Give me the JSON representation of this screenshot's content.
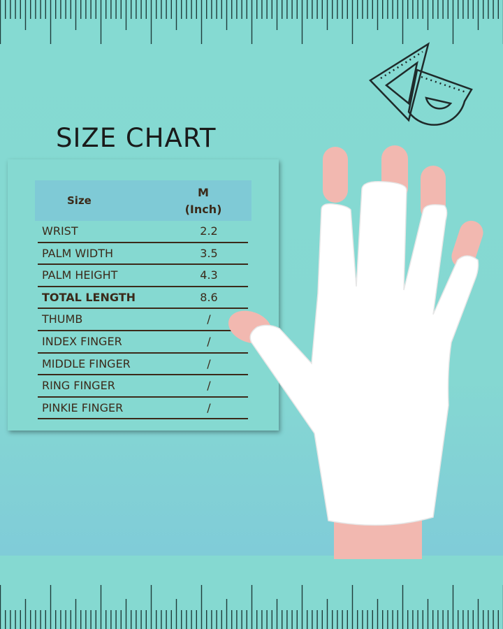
{
  "title": "SIZE CHART",
  "table": {
    "header": {
      "size": "Size",
      "m_line1": "M",
      "m_line2": "(Inch)"
    },
    "rows": [
      {
        "label": "WRIST",
        "value": "2.2"
      },
      {
        "label": "PALM WIDTH",
        "value": "3.5"
      },
      {
        "label": "PALM HEIGHT",
        "value": "4.3"
      },
      {
        "label": "TOTAL LENGTH",
        "value": "8.6",
        "bold": true
      },
      {
        "label": "THUMB",
        "value": "/"
      },
      {
        "label": "INDEX FINGER",
        "value": "/"
      },
      {
        "label": "MIDDLE FINGER",
        "value": "/"
      },
      {
        "label": "RING FINGER",
        "value": "/"
      },
      {
        "label": "PINKIE FINGER",
        "value": "/"
      }
    ]
  },
  "colors": {
    "background": "#85d9d1",
    "header": "#7fcad6",
    "text": "#3b2a1a",
    "ruler": "#1f3b3a",
    "glove": "#ffffff",
    "skin": "#f2b8b0"
  },
  "icons": [
    "ruler-icon",
    "set-square-protractor-icon",
    "fingerless-glove-image"
  ]
}
